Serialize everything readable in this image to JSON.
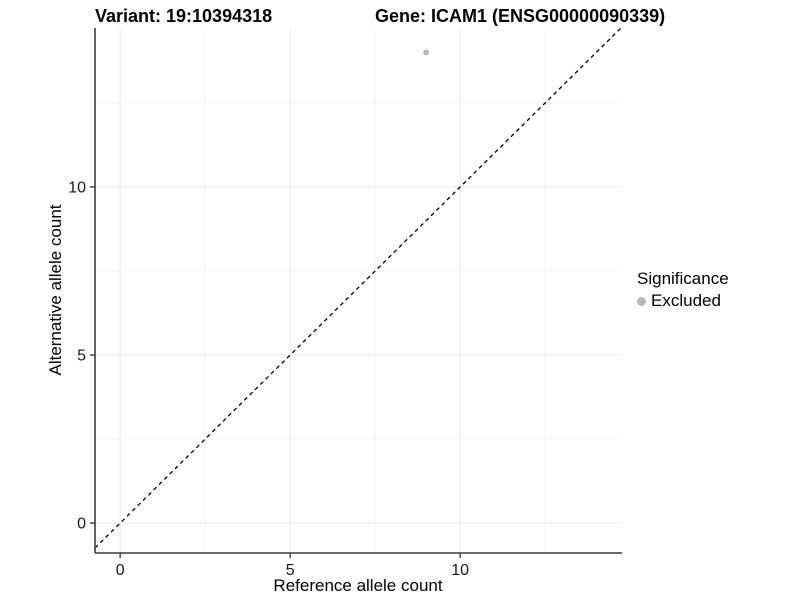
{
  "chart_data": {
    "type": "scatter",
    "title_left": "Variant: 19:10394318",
    "title_right": "Gene: ICAM1 (ENSG00000090339)",
    "xlabel": "Reference allele count",
    "ylabel": "Alternative allele count",
    "xlim": [
      -0.74,
      14.76
    ],
    "ylim": [
      -0.89,
      14.73
    ],
    "x_ticks": [
      0,
      5,
      10
    ],
    "y_ticks": [
      0,
      5,
      10
    ],
    "x_minor_gridlines": [
      2.5,
      7.5,
      12.5
    ],
    "y_minor_gridlines": [
      2.5,
      7.5,
      12.5
    ],
    "points": [
      {
        "x": 9,
        "y": 14,
        "significance": "Excluded"
      }
    ],
    "identity_line": {
      "slope": 1,
      "intercept": 0,
      "style": "dashed"
    },
    "legend": {
      "title": "Significance",
      "position": "right",
      "entries": [
        {
          "label": "Excluded",
          "color": "#b8b8b8"
        }
      ]
    },
    "grid": true,
    "colors": {
      "point": "#b8b8b8",
      "identity_line": "#000000",
      "grid_major": "#e9e9e9",
      "grid_minor": "#f4f4f4",
      "axis_line": "#3c3c3c",
      "tick_text": "#1a1a1a",
      "text": "#000000"
    }
  }
}
